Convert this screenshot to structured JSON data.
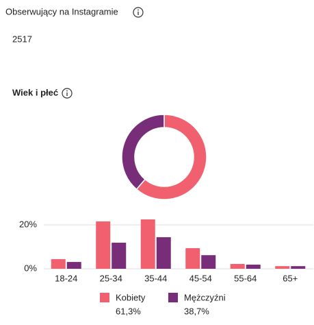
{
  "header": {
    "title": "Obserwujący na Instagramie",
    "count": 2517
  },
  "section_title": "Wiek i płeć",
  "chart_data": [
    {
      "type": "pie",
      "donut": true,
      "values": [
        61.3,
        38.7
      ],
      "value_labels": [
        "61,3%",
        "38,7%"
      ],
      "colors": [
        "#f0606e",
        "#772d78"
      ]
    },
    {
      "type": "bar",
      "categories": [
        "18-24",
        "25-34",
        "35-44",
        "45-54",
        "55-64",
        "65+"
      ],
      "series": [
        {
          "name": "Kobiety",
          "color": "#f0606e",
          "values": [
            4.4,
            21.6,
            22.5,
            9.4,
            2.2,
            1.2
          ]
        },
        {
          "name": "Mężczyźni",
          "color": "#772d78",
          "values": [
            3.1,
            11.9,
            14.4,
            6.2,
            1.9,
            1.2
          ]
        }
      ],
      "ylim": [
        0,
        25
      ],
      "yticks": [
        {
          "value": 0,
          "label": "0%"
        },
        {
          "value": 20,
          "label": "20%"
        }
      ],
      "grid": true
    }
  ]
}
